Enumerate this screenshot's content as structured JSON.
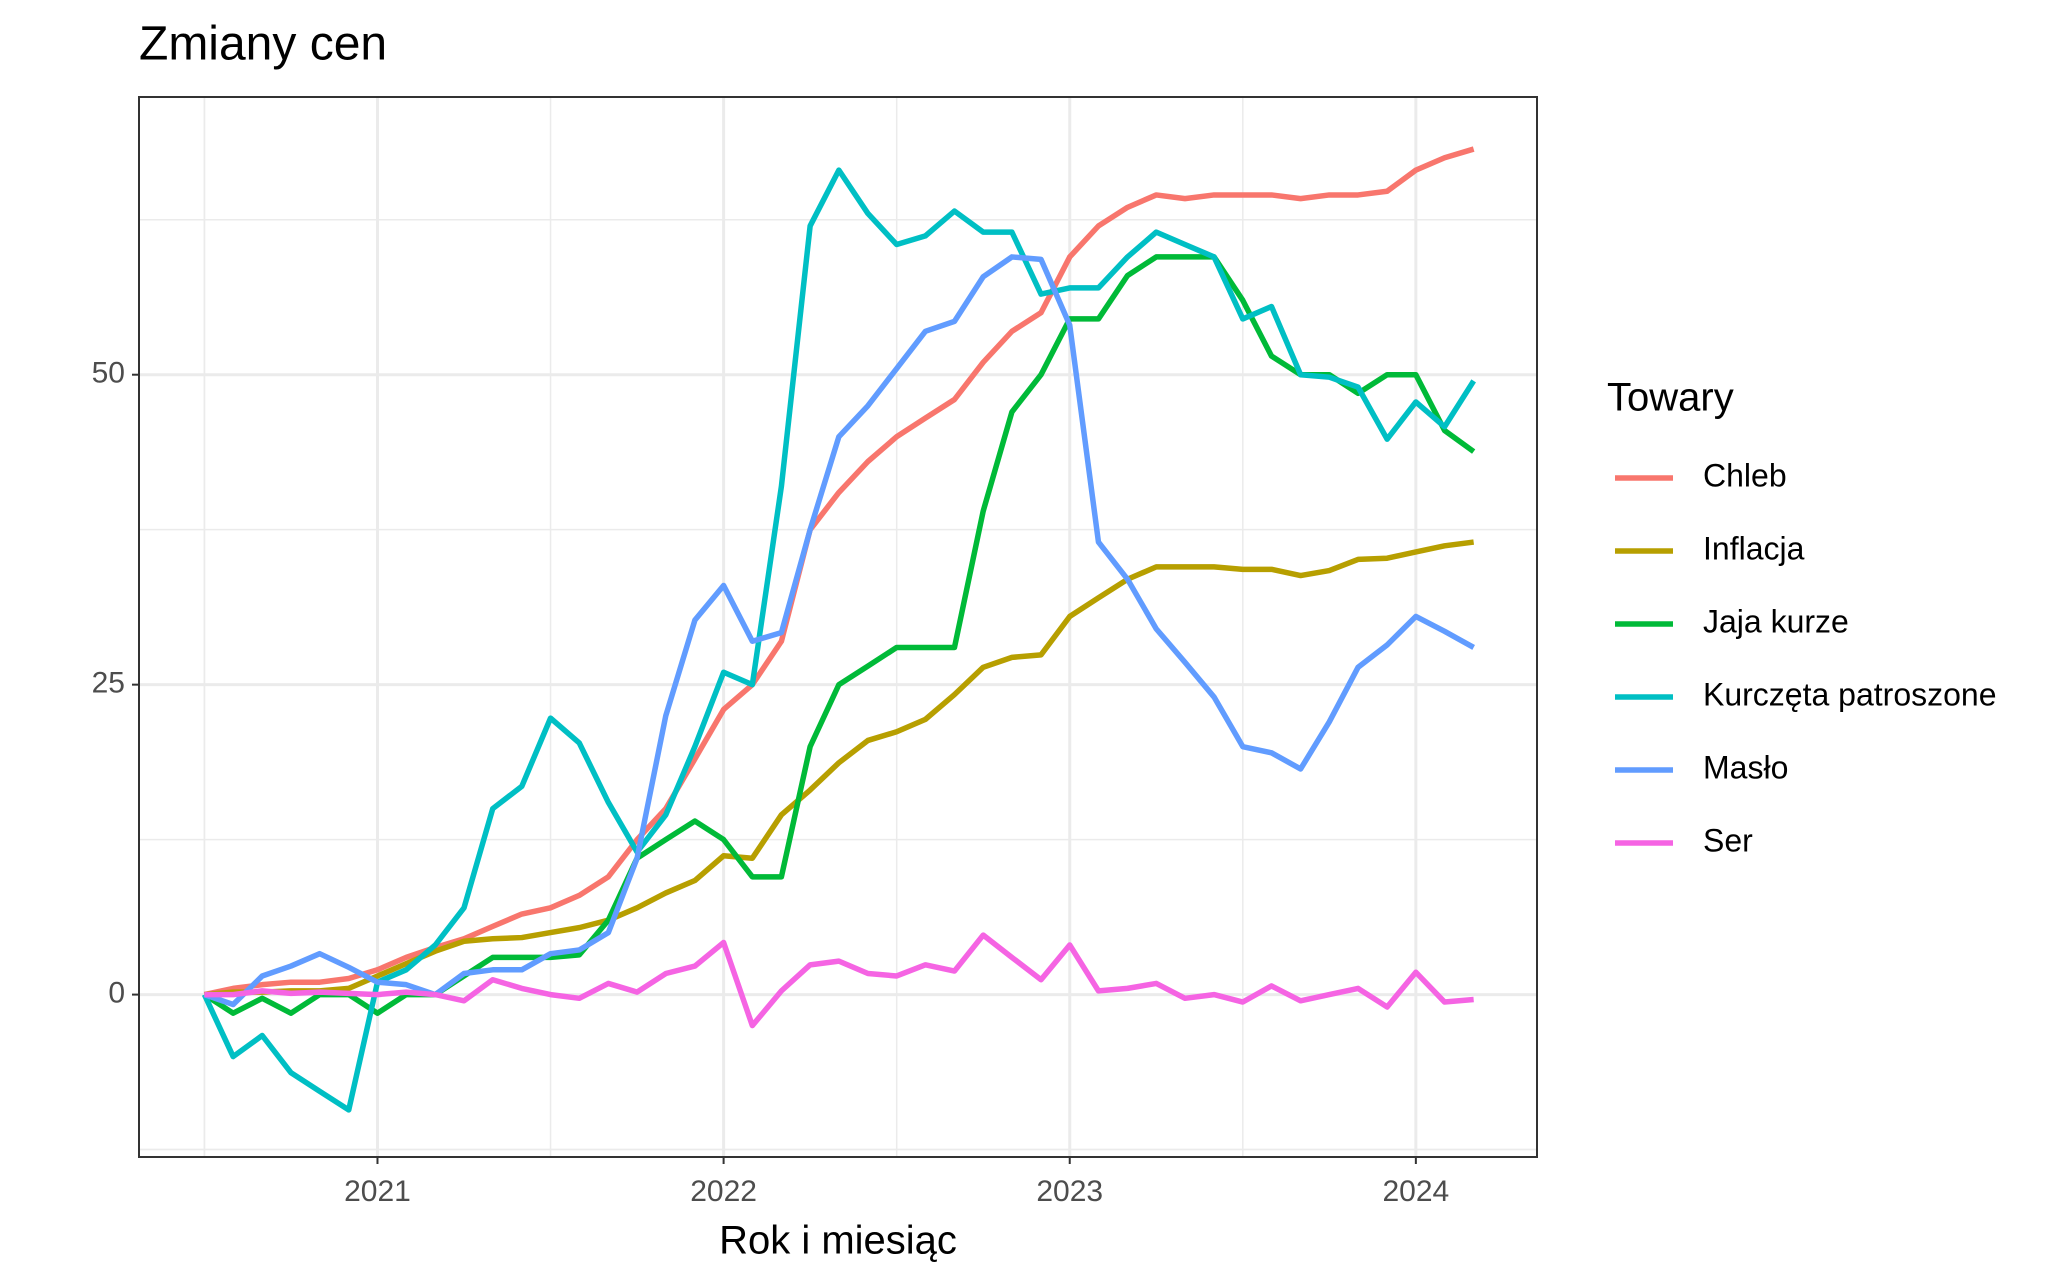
{
  "chart_data": {
    "type": "line",
    "title": "Zmiany cen",
    "xlabel": "Rok i miesiąc",
    "legend_title": "Towary",
    "x": [
      2020.5,
      2020.583,
      2020.667,
      2020.75,
      2020.833,
      2020.917,
      2021,
      2021.083,
      2021.167,
      2021.25,
      2021.333,
      2021.417,
      2021.5,
      2021.583,
      2021.667,
      2021.75,
      2021.833,
      2021.917,
      2022,
      2022.083,
      2022.167,
      2022.25,
      2022.333,
      2022.417,
      2022.5,
      2022.583,
      2022.667,
      2022.75,
      2022.833,
      2022.917,
      2023,
      2023.083,
      2023.167,
      2023.25,
      2023.333,
      2023.417,
      2023.5,
      2023.583,
      2023.667,
      2023.75,
      2023.833,
      2023.917,
      2024,
      2024.083,
      2024.167
    ],
    "series": [
      {
        "name": "Chleb",
        "color": "#F8766D",
        "values": [
          0,
          0.5,
          0.8,
          1,
          1,
          1.3,
          2,
          3,
          3.8,
          4.5,
          5.5,
          6.5,
          7,
          8,
          9.5,
          12.5,
          15,
          19,
          23,
          25,
          28.5,
          37.5,
          40.5,
          43,
          45,
          46.5,
          48,
          51,
          53.5,
          55,
          59.5,
          62,
          63.5,
          64.5,
          64.2,
          64.5,
          64.5,
          64.5,
          64.2,
          64.5,
          64.5,
          64.8,
          66.5,
          67.5,
          68.2
        ]
      },
      {
        "name": "Inflacja",
        "color": "#B79F00",
        "values": [
          0,
          0.2,
          0.2,
          0.3,
          0.3,
          0.5,
          1.5,
          2.5,
          3.5,
          4.3,
          4.5,
          4.6,
          5,
          5.4,
          6,
          7,
          8.2,
          9.2,
          11.2,
          11,
          14.5,
          16.5,
          18.7,
          20.5,
          21.2,
          22.2,
          24.2,
          26.4,
          27.2,
          27.4,
          30.5,
          32,
          33.5,
          34.5,
          34.5,
          34.5,
          34.3,
          34.3,
          33.8,
          34.2,
          35.1,
          35.2,
          35.7,
          36.2,
          36.5
        ]
      },
      {
        "name": "Jaja kurze",
        "color": "#00BA38",
        "values": [
          0,
          -1.5,
          -0.3,
          -1.5,
          0,
          0,
          -1.5,
          0,
          0,
          1.5,
          3,
          3,
          3,
          3.2,
          6,
          11,
          12.5,
          14,
          12.5,
          9.5,
          9.5,
          20,
          25,
          26.5,
          28,
          28,
          28,
          39,
          47,
          50,
          54.5,
          54.5,
          58,
          59.5,
          59.5,
          59.5,
          56,
          51.5,
          50,
          50,
          48.5,
          50,
          50,
          45.5,
          43.8
        ]
      },
      {
        "name": "Kurczęta patroszone",
        "color": "#00BFC4",
        "values": [
          0,
          -5,
          -3.3,
          -6.3,
          -7.8,
          -9.3,
          1,
          2,
          4,
          7,
          15,
          16.8,
          22.3,
          20.3,
          15.5,
          11.5,
          14.5,
          20,
          26,
          25,
          41,
          62,
          66.5,
          63,
          60.5,
          61.2,
          63.2,
          61.5,
          61.5,
          56.5,
          57,
          57,
          59.5,
          61.5,
          60.5,
          59.5,
          54.5,
          55.5,
          50,
          49.8,
          49,
          44.8,
          47.8,
          45.8,
          49.5
        ]
      },
      {
        "name": "Masło",
        "color": "#619CFF",
        "values": [
          0,
          -0.8,
          1.5,
          2.3,
          3.3,
          2.2,
          1,
          0.8,
          0,
          1.7,
          2,
          2,
          3.3,
          3.6,
          5,
          11,
          22.5,
          30.2,
          33,
          28.5,
          29.2,
          37.5,
          45,
          47.5,
          50.5,
          53.5,
          54.3,
          57.9,
          59.5,
          59.3,
          54,
          36.5,
          33.5,
          29.5,
          26.8,
          24,
          20,
          19.5,
          18.2,
          22,
          26.4,
          28.2,
          30.5,
          29.3,
          28
        ]
      },
      {
        "name": "Ser",
        "color": "#F564E3",
        "values": [
          0,
          0,
          0.3,
          0.1,
          0.2,
          0.1,
          0,
          0.2,
          0,
          -0.5,
          1.2,
          0.5,
          0,
          -0.3,
          0.9,
          0.2,
          1.7,
          2.3,
          4.2,
          -2.5,
          0.3,
          2.4,
          2.7,
          1.7,
          1.5,
          2.4,
          1.9,
          4.8,
          3,
          1.2,
          4,
          0.3,
          0.5,
          0.9,
          -0.3,
          0,
          -0.6,
          0.7,
          -0.5,
          0,
          0.5,
          -1,
          1.8,
          -0.6,
          -0.4
        ]
      }
    ],
    "xlim": [
      2020.311,
      2024.35
    ],
    "xticks": [
      2021,
      2022,
      2023,
      2024
    ],
    "ylim": [
      -13.1,
      72.4
    ],
    "yticks": [
      0,
      25,
      50
    ],
    "grid": true,
    "legend": "right"
  }
}
